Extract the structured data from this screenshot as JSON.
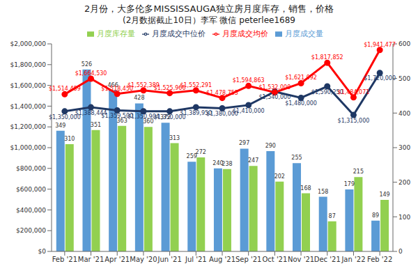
{
  "chart_data": {
    "type": "bar",
    "title": "2月份，大多伦多MISSISSAUGA独立房月度库存，销售，价格",
    "subtitle": "(2月数据截止10日）李军  微信 peterlee1689",
    "categories": [
      "Feb '21",
      "Mar '21",
      "Apr '21",
      "May '20",
      "Jun '21",
      "Jul '21",
      "Aug '21",
      "Sep '21",
      "Oct '21",
      "Nov '21",
      "Dec '21",
      "Jan '22",
      "Feb '22"
    ],
    "series": [
      {
        "name": "月度成交量",
        "type": "bar",
        "axis": "y2",
        "color": "#5b9bd5",
        "values": [
          349,
          526,
          466,
          428,
          372,
          259,
          240,
          297,
          290,
          255,
          158,
          179,
          89
        ]
      },
      {
        "name": "月度库存量",
        "type": "bar",
        "axis": "y2",
        "color": "#92d050",
        "values": [
          310,
          351,
          363,
          360,
          313,
          272,
          238,
          247,
          202,
          168,
          87,
          215,
          149
        ]
      },
      {
        "name": "月度成交中位价",
        "type": "line",
        "color": "#1f3864",
        "marker": "circle",
        "values": [
          1350000,
          1388444,
          1359500,
          1350904,
          1350000,
          1389950,
          1380000,
          1410000,
          1540000,
          1480000,
          1590250,
          1315000,
          1720000
        ],
        "value_labels": [
          "$1,350,000",
          "$1,388,444",
          "$1,359,500",
          "$1,350,904",
          "$1,350,000",
          "$1,389,950",
          "$1,380,000",
          "$1,410,000",
          "$1,540,000",
          "$1,480,000",
          "$1,590,250",
          "$1,315,000",
          "$1,720,000"
        ]
      },
      {
        "name": "月度成交均价",
        "type": "line",
        "color": "#ff0000",
        "marker": "circle",
        "values": [
          1514489,
          1664530,
          1518450,
          1552389,
          1525966,
          1552291,
          1478753,
          1594863,
          1532000,
          1621092,
          1817852,
          1484071,
          1941477
        ],
        "value_labels": [
          "$1,514,489",
          "$1,664,530",
          "$1,518,450",
          "$1,552,389",
          "$1,525,966",
          "$1,552,291",
          "$1,478,753",
          "$1,594,863",
          "$1,532,000",
          "$1,621,092",
          "$1,817,852",
          "$1,484,071",
          "$1,941,477"
        ]
      }
    ],
    "ylim": [
      0,
      2000000
    ],
    "yticks": [
      {
        "value": 0,
        "label": "$0"
      },
      {
        "value": 200000,
        "label": "$200,000"
      },
      {
        "value": 400000,
        "label": "$400,000"
      },
      {
        "value": 600000,
        "label": "$600,000"
      },
      {
        "value": 800000,
        "label": "$800,000"
      },
      {
        "value": 1000000,
        "label": "$1,000,000"
      },
      {
        "value": 1200000,
        "label": "$1,200,000"
      },
      {
        "value": 1400000,
        "label": "$1,400,000"
      },
      {
        "value": 1600000,
        "label": "$1,600,000"
      },
      {
        "value": 1800000,
        "label": "$1,800,000"
      },
      {
        "value": 2000000,
        "label": "$2,000,000"
      }
    ],
    "y2lim": [
      0,
      600
    ],
    "y2ticks": [
      0,
      100,
      200,
      300,
      400,
      500,
      600
    ],
    "legend": "top",
    "data_labels": true,
    "grid": false
  }
}
